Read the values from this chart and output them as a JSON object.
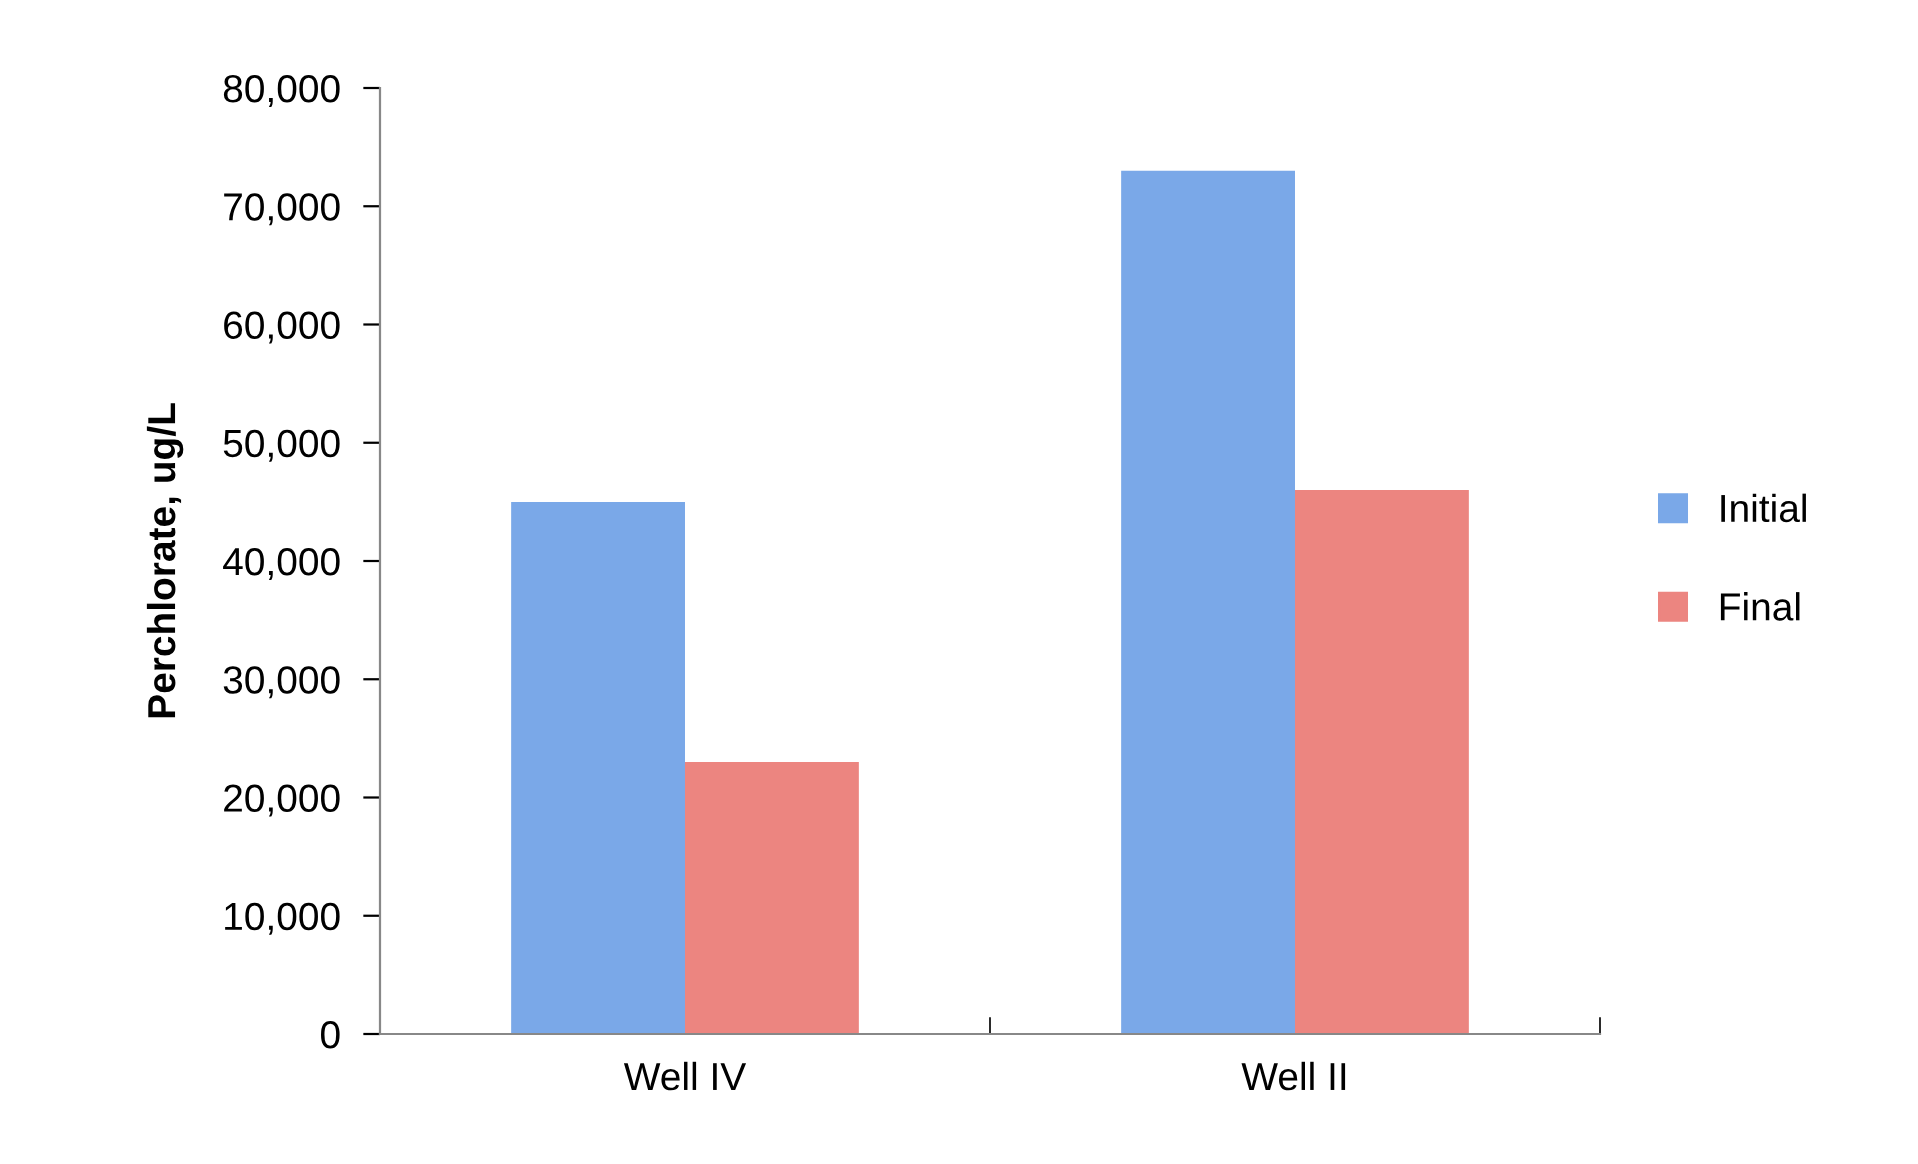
{
  "chart_data": {
    "type": "bar",
    "ylabel": "Perchlorate, ug/L",
    "categories": [
      "Well IV",
      "Well II"
    ],
    "series": [
      {
        "name": "Initial",
        "color": "#7aa8e8",
        "values": [
          45000,
          73000
        ]
      },
      {
        "name": "Final",
        "color": "#ec8580",
        "values": [
          23000,
          46000
        ]
      }
    ],
    "ylim": [
      0,
      80000
    ],
    "yticks": [
      {
        "value": 0,
        "label": "0"
      },
      {
        "value": 10000,
        "label": "10,000"
      },
      {
        "value": 20000,
        "label": "20,000"
      },
      {
        "value": 30000,
        "label": "30,000"
      },
      {
        "value": 40000,
        "label": "40,000"
      },
      {
        "value": 50000,
        "label": "50,000"
      },
      {
        "value": 60000,
        "label": "60,000"
      },
      {
        "value": 70000,
        "label": "70,000"
      },
      {
        "value": 80000,
        "label": "80,000"
      }
    ],
    "grid": false,
    "legend": "right"
  }
}
